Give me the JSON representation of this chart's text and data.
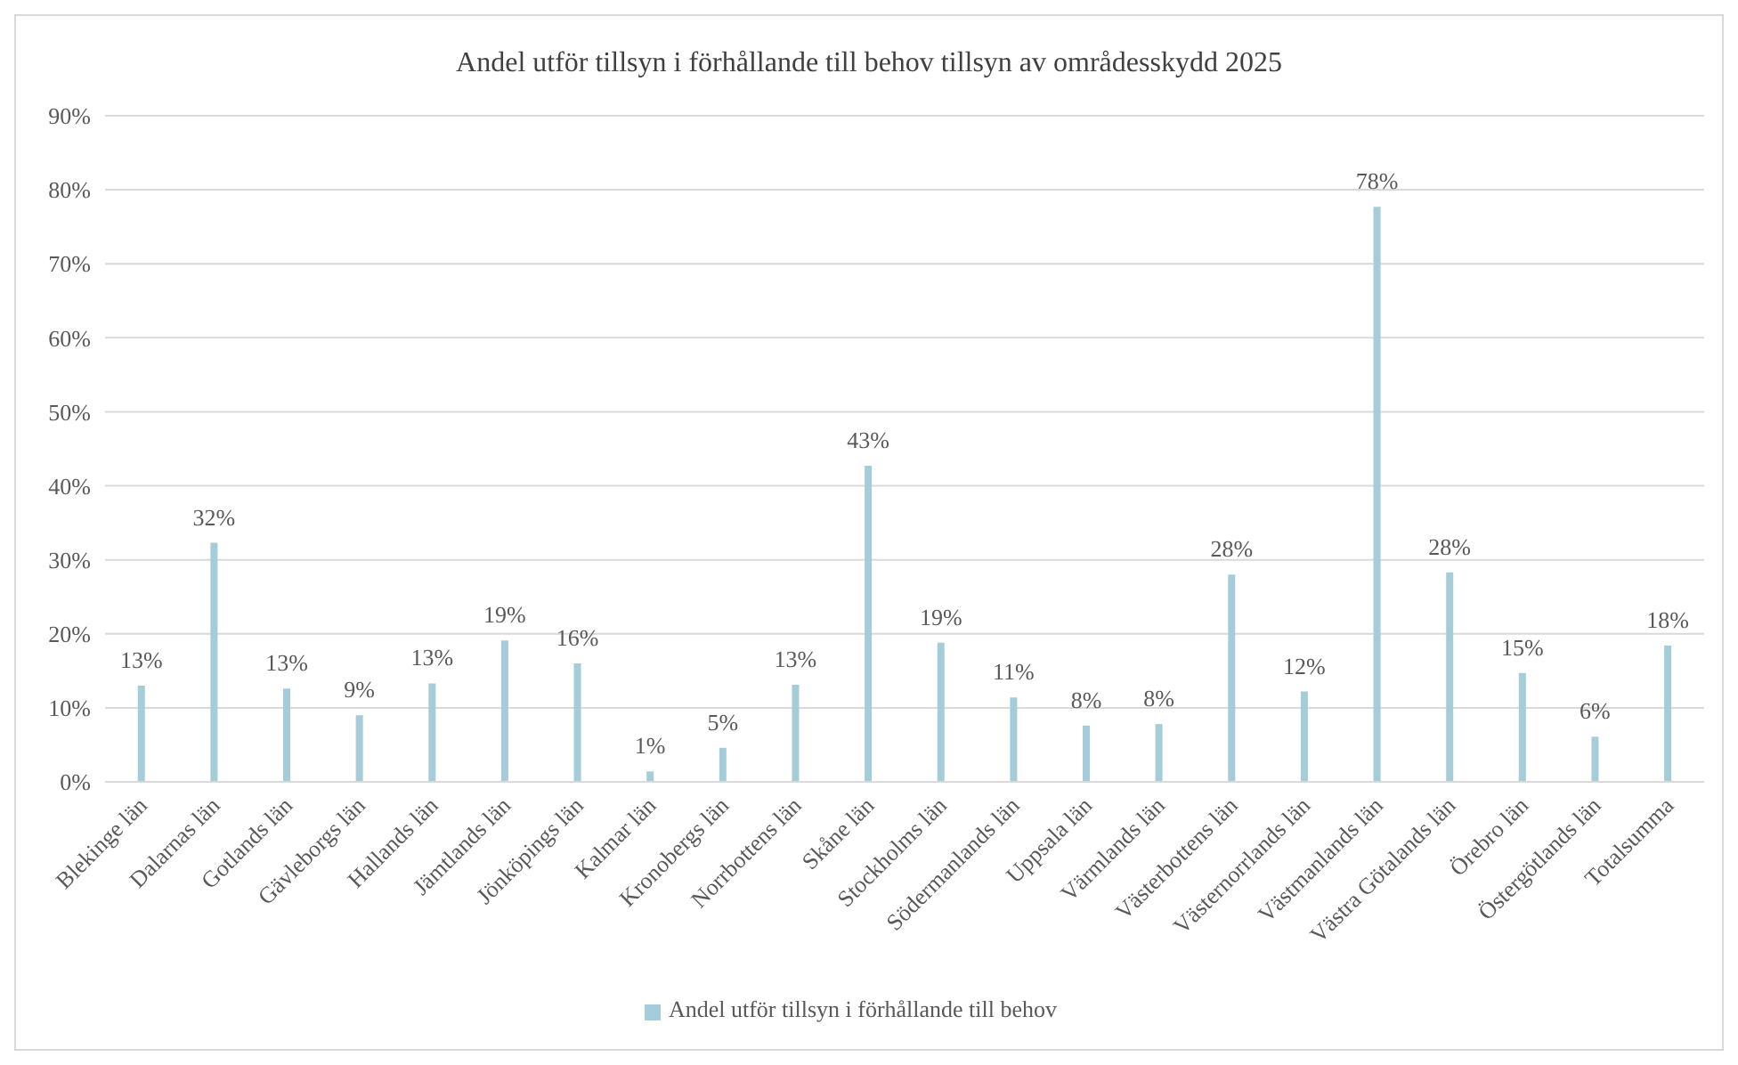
{
  "chart_data": {
    "type": "bar",
    "title": "Andel utför tillsyn i förhållande till behov tillsyn av områdesskydd 2025",
    "categories": [
      "Blekinge län",
      "Dalarnas län",
      "Gotlands län",
      "Gävleborgs län",
      "Hallands län",
      "Jämtlands län",
      "Jönköpings län",
      "Kalmar län",
      "Kronobergs län",
      "Norrbottens län",
      "Skåne län",
      "Stockholms län",
      "Södermanlands län",
      "Uppsala län",
      "Värmlands län",
      "Västerbottens län",
      "Västernorrlands län",
      "Västmanlands län",
      "Västra Götalands län",
      "Örebro län",
      "Östergötlands län",
      "Totalsumma"
    ],
    "series": [
      {
        "name": "Andel utför tillsyn i förhållande till behov",
        "color": "#a5cdd9",
        "values": [
          13,
          32.3,
          12.6,
          9,
          13.3,
          19.1,
          16,
          1.4,
          4.6,
          13.1,
          42.7,
          18.8,
          11.4,
          7.6,
          7.8,
          28,
          12.2,
          77.7,
          28.3,
          14.7,
          6.1,
          18.4
        ],
        "value_labels": [
          "13%",
          "32%",
          "13%",
          "9%",
          "13%",
          "19%",
          "16%",
          "1%",
          "5%",
          "13%",
          "43%",
          "19%",
          "11%",
          "8%",
          "8%",
          "28%",
          "12%",
          "78%",
          "28%",
          "15%",
          "6%",
          "18%"
        ]
      }
    ],
    "ylim": [
      0,
      90
    ],
    "yticks": [
      {
        "value": 0,
        "label": "0%"
      },
      {
        "value": 10,
        "label": "10%"
      },
      {
        "value": 20,
        "label": "20%"
      },
      {
        "value": 30,
        "label": "30%"
      },
      {
        "value": 40,
        "label": "40%"
      },
      {
        "value": 50,
        "label": "50%"
      },
      {
        "value": 60,
        "label": "60%"
      },
      {
        "value": 70,
        "label": "70%"
      },
      {
        "value": 80,
        "label": "80%"
      },
      {
        "value": 90,
        "label": "90%"
      }
    ],
    "grid": "y",
    "legend": "bottom"
  }
}
